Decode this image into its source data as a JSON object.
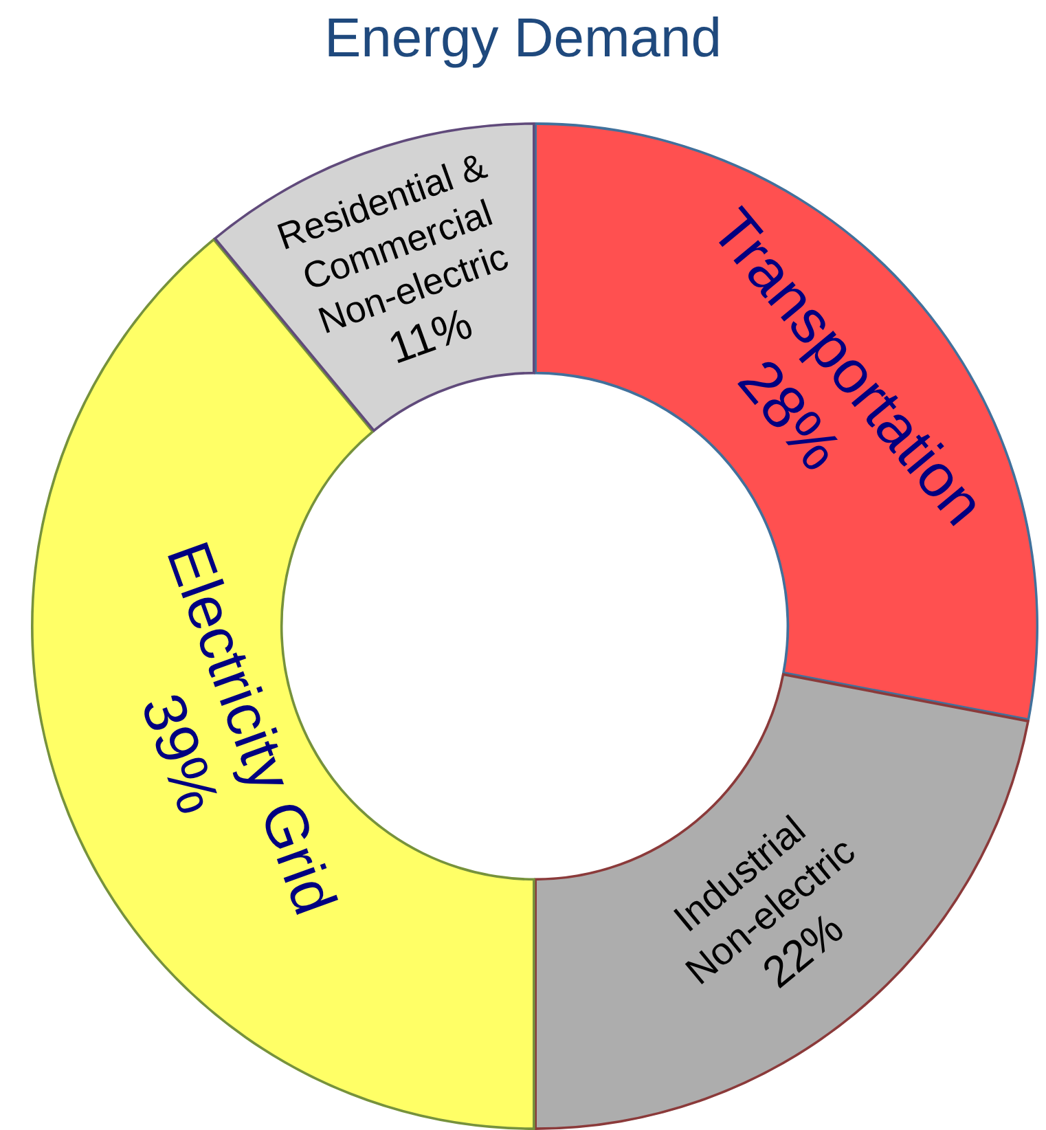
{
  "chart_data": {
    "type": "donut",
    "title": "Energy Demand",
    "categories": [
      "Transportation",
      "Industrial Non-electric",
      "Electricity Grid",
      "Residential & Commercial Non-electric"
    ],
    "values": [
      28,
      22,
      39,
      11
    ],
    "colors": [
      "#ff5050",
      "#adadad",
      "#ffff66",
      "#d3d3d3"
    ],
    "value_labels": [
      "28%",
      "22%",
      "39%",
      "11%"
    ],
    "legend": false
  }
}
